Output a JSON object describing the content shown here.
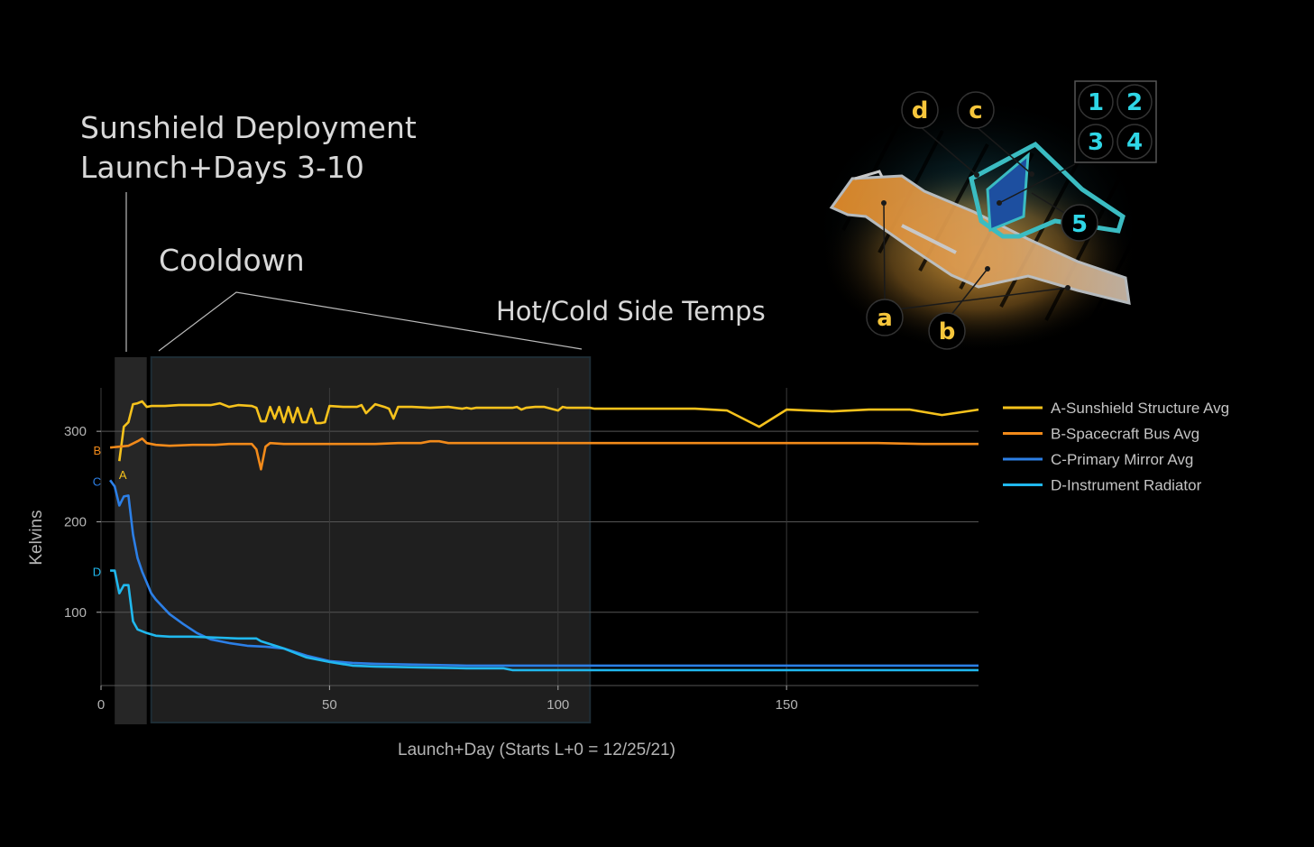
{
  "annotations": {
    "deployment_line1": "Sunshield Deployment",
    "deployment_line2": "Launch+Days 3-10",
    "cooldown": "Cooldown",
    "hotcold": "Hot/Cold Side Temps"
  },
  "diagram": {
    "badges": [
      "d",
      "c",
      "a",
      "b"
    ],
    "grid_badges": [
      "1",
      "2",
      "3",
      "4"
    ],
    "badge5": "5",
    "colors": {
      "yellow": "#f6c63b",
      "cyan": "#2fd6e6",
      "sunshield": "#f2a541",
      "mirror": "#1d4fa0"
    }
  },
  "chart_data": {
    "type": "line",
    "xlabel": "Launch+Day (Starts L+0 = 12/25/21)",
    "ylabel": "Kelvins",
    "xlim": [
      0,
      192
    ],
    "ylim": [
      19,
      348
    ],
    "x_ticks": [
      0,
      50,
      100,
      150
    ],
    "y_ticks": [
      100,
      200,
      300
    ],
    "grid": true,
    "legend_position": "right",
    "shaded_regions": [
      {
        "x0": 3,
        "x1": 10,
        "label": "deployment"
      },
      {
        "x0": 11,
        "x1": 107,
        "label": "cooldown"
      }
    ],
    "series": [
      {
        "name": "A-Sunshield Structure Avg",
        "tag": "A",
        "color": "#f6c21c",
        "x": [
          4,
          5,
          6,
          7,
          8,
          9,
          10,
          11,
          12,
          14,
          17,
          20,
          22,
          24,
          26,
          28,
          30,
          33,
          34,
          35,
          36,
          37,
          38,
          39,
          40,
          41,
          42,
          43,
          44,
          45,
          46,
          47,
          48,
          49,
          50,
          53,
          56,
          57,
          58,
          60,
          62,
          63,
          64,
          65,
          68,
          72,
          76,
          79,
          80,
          81,
          82,
          85,
          90,
          91,
          92,
          93,
          95,
          97,
          100,
          101,
          102,
          104,
          107,
          108,
          110,
          115,
          120,
          130,
          137,
          144,
          150,
          160,
          168,
          177,
          184,
          192
        ],
        "values": [
          267,
          305,
          310,
          330,
          331,
          333,
          327,
          328,
          328,
          328,
          329,
          329,
          329,
          329,
          331,
          327,
          329,
          328,
          326,
          311,
          311,
          327,
          314,
          327,
          310,
          327,
          310,
          326,
          310,
          310,
          325,
          309,
          309,
          310,
          328,
          327,
          327,
          329,
          320,
          330,
          327,
          325,
          314,
          327,
          327,
          326,
          327,
          325,
          326,
          325,
          326,
          326,
          326,
          327,
          324,
          326,
          327,
          327,
          323,
          327,
          326,
          326,
          326,
          325,
          325,
          325,
          325,
          325,
          323,
          305,
          324,
          322,
          324,
          324,
          318,
          324
        ]
      },
      {
        "name": "B-Spacecraft Bus Avg",
        "tag": "B",
        "color": "#f28a1a",
        "x": [
          2,
          4,
          6,
          8,
          9,
          10,
          12,
          15,
          20,
          25,
          28,
          30,
          33,
          34,
          35,
          36,
          37,
          40,
          45,
          50,
          55,
          60,
          65,
          70,
          72,
          74,
          76,
          80,
          90,
          100,
          110,
          120,
          130,
          140,
          150,
          160,
          170,
          180,
          192
        ],
        "values": [
          282,
          283,
          284,
          289,
          292,
          287,
          285,
          284,
          285,
          285,
          286,
          286,
          286,
          280,
          258,
          283,
          287,
          286,
          286,
          286,
          286,
          286,
          287,
          287,
          289,
          289,
          287,
          287,
          287,
          287,
          287,
          287,
          287,
          287,
          287,
          287,
          287,
          286,
          286
        ]
      },
      {
        "name": "C-Primary Mirror Avg",
        "tag": "C",
        "color": "#2c7fe6",
        "x": [
          2,
          3,
          4,
          5,
          6,
          7,
          8,
          9,
          10,
          11,
          12,
          15,
          18,
          21,
          24,
          28,
          32,
          36,
          40,
          45,
          50,
          55,
          60,
          70,
          80,
          90,
          100,
          110,
          130,
          150,
          170,
          192
        ],
        "values": [
          246,
          239,
          218,
          228,
          229,
          186,
          160,
          145,
          133,
          121,
          114,
          98,
          87,
          77,
          70,
          66,
          63,
          62,
          60,
          52,
          46,
          44,
          43,
          42,
          41,
          41,
          41,
          41,
          41,
          41,
          41,
          41
        ]
      },
      {
        "name": "D-Instrument Radiator",
        "tag": "D",
        "color": "#20b8ee",
        "x": [
          2,
          3,
          4,
          5,
          6,
          7,
          8,
          9,
          10,
          12,
          15,
          20,
          25,
          30,
          33,
          34,
          35,
          40,
          45,
          50,
          55,
          60,
          70,
          80,
          87,
          88,
          90,
          95,
          100,
          120,
          150,
          192
        ],
        "values": [
          146,
          146,
          121,
          130,
          130,
          90,
          81,
          79,
          77,
          74,
          73,
          73,
          72,
          71,
          71,
          71,
          68,
          60,
          50,
          45,
          41,
          40,
          39,
          38,
          38,
          38,
          36,
          36,
          36,
          36,
          36,
          36
        ]
      }
    ]
  }
}
